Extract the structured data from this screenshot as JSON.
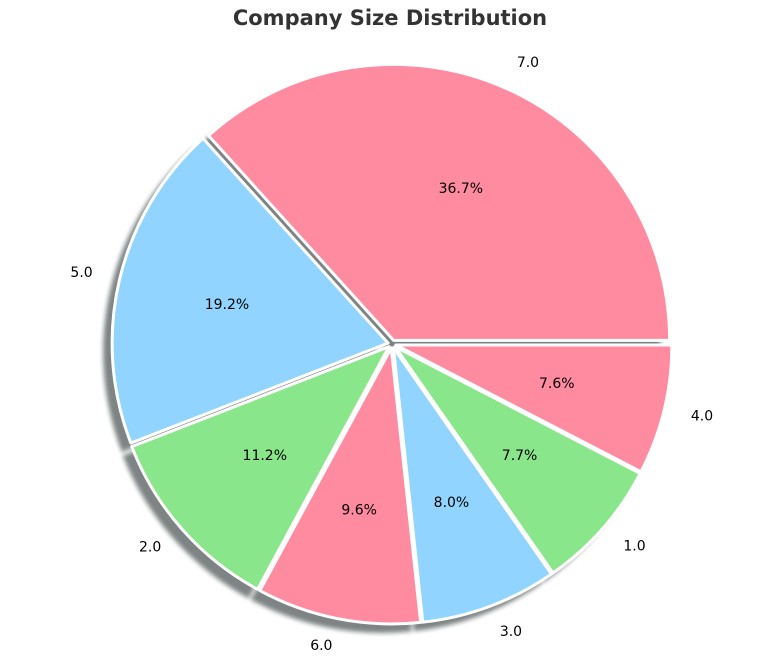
{
  "chart_data": {
    "type": "pie",
    "title": "Company Size Distribution",
    "start_angle_deg": 0,
    "direction": "counterclockwise",
    "shadow": true,
    "slices": [
      {
        "label": "7.0",
        "value": 36.7,
        "pct_label": "36.7%",
        "color": "#ff8ba0"
      },
      {
        "label": "5.0",
        "value": 19.2,
        "pct_label": "19.2%",
        "color": "#90d4ff"
      },
      {
        "label": "2.0",
        "value": 11.2,
        "pct_label": "11.2%",
        "color": "#8ae68a"
      },
      {
        "label": "6.0",
        "value": 9.6,
        "pct_label": "9.6%",
        "color": "#ff8ba0"
      },
      {
        "label": "3.0",
        "value": 8.0,
        "pct_label": "8.0%",
        "color": "#90d4ff"
      },
      {
        "label": "1.0",
        "value": 7.7,
        "pct_label": "7.7%",
        "color": "#8ae68a"
      },
      {
        "label": "4.0",
        "value": 7.6,
        "pct_label": "7.6%",
        "color": "#ff8ba0"
      }
    ]
  }
}
